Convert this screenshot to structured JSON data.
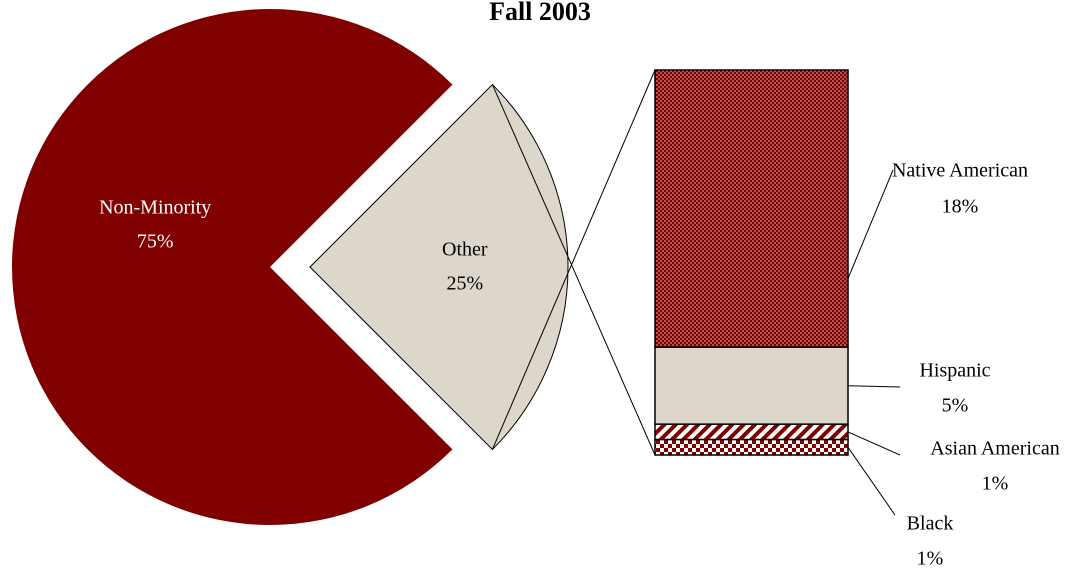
{
  "chart_data": [
    {
      "type": "pie",
      "title": "Fall 2003",
      "categories": [
        "Non-Minority",
        "Other"
      ],
      "values": [
        75,
        25
      ],
      "value_labels": [
        "75%",
        "25%"
      ],
      "colors": [
        "#800000",
        "#ddd6ca"
      ]
    },
    {
      "type": "bar",
      "categories": [
        "Native American",
        "Hispanic",
        "Asian American",
        "Black"
      ],
      "values": [
        18,
        5,
        1,
        1
      ],
      "value_labels": [
        "18%",
        "5%",
        "1%",
        "1%"
      ],
      "colors": [
        "#800000",
        "#ddd6ca",
        "#800000",
        "#800000"
      ]
    }
  ]
}
